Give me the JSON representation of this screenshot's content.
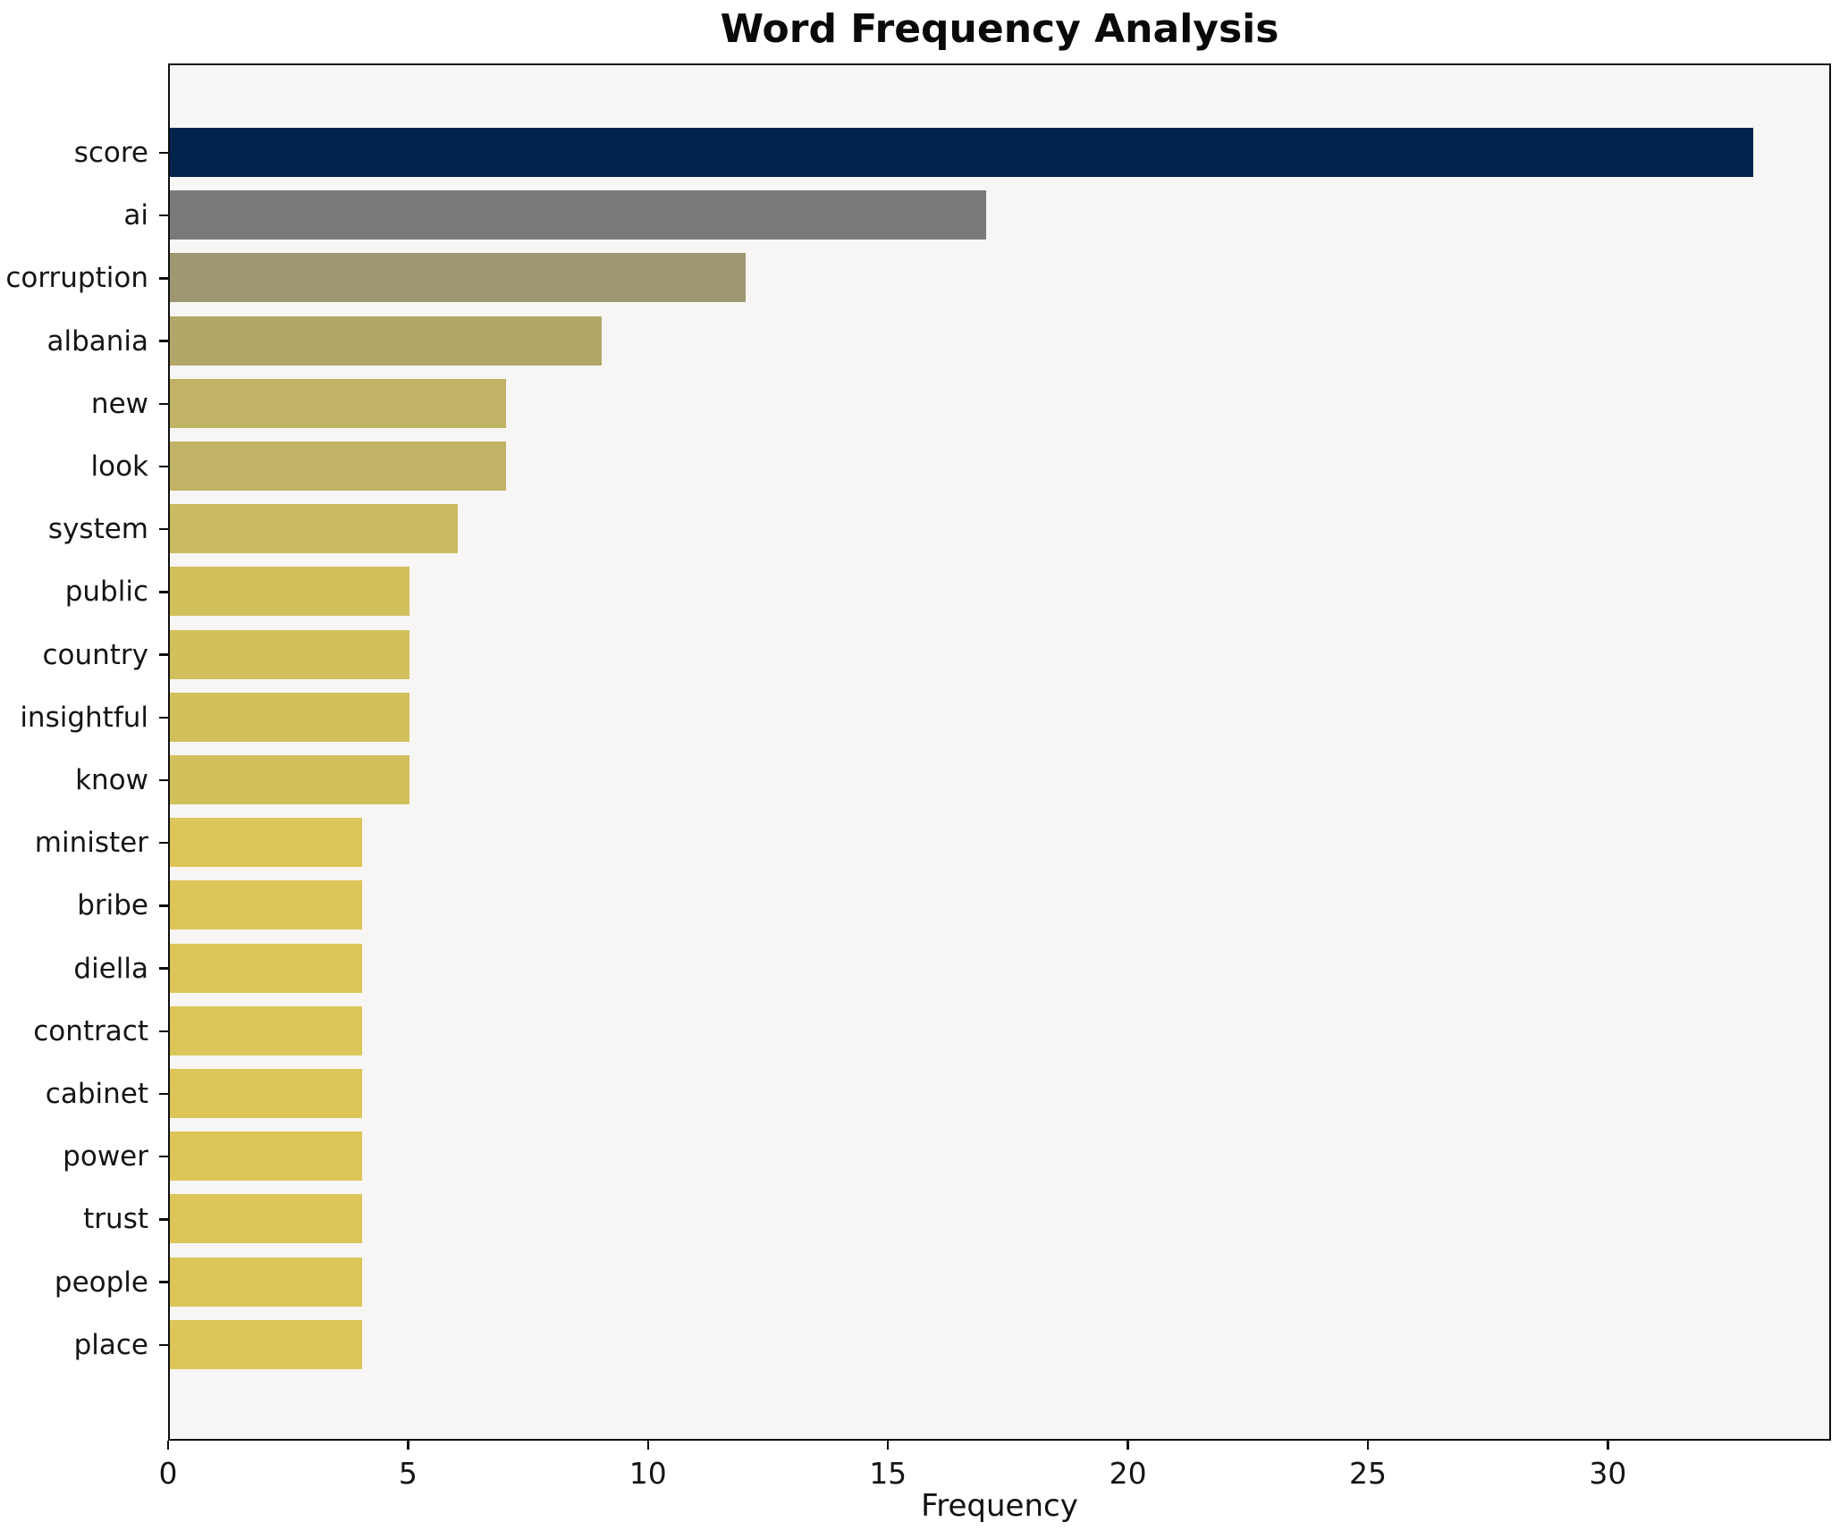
{
  "chart_data": {
    "type": "bar",
    "orientation": "horizontal",
    "title": "Word Frequency Analysis",
    "xlabel": "Frequency",
    "ylabel": "",
    "categories": [
      "score",
      "ai",
      "corruption",
      "albania",
      "new",
      "look",
      "system",
      "public",
      "country",
      "insightful",
      "know",
      "minister",
      "bribe",
      "diella",
      "contract",
      "cabinet",
      "power",
      "trust",
      "people",
      "place"
    ],
    "values": [
      33,
      17,
      12,
      9,
      7,
      7,
      6,
      5,
      5,
      5,
      5,
      4,
      4,
      4,
      4,
      4,
      4,
      4,
      4,
      4
    ],
    "bar_colors": [
      "#02234e",
      "#7a7a78",
      "#9e9771",
      "#b2a768",
      "#c1b365",
      "#c1b365",
      "#cbba60",
      "#d2c05d",
      "#d2c05d",
      "#d2c05d",
      "#d2c05d",
      "#dcc65a",
      "#dcc65a",
      "#dcc65a",
      "#dcc65a",
      "#dcc65a",
      "#dcc65a",
      "#dcc65a",
      "#dcc65a",
      "#dcc65a"
    ],
    "xticks": [
      0,
      5,
      10,
      15,
      20,
      25,
      30
    ],
    "xlim": [
      0,
      34.65
    ],
    "grid": false,
    "legend": null,
    "plot_bg": "#f7f6f4",
    "figure_bg": "#ffffff",
    "spine_color": "#0e0e0e",
    "text_color": "#151515"
  }
}
